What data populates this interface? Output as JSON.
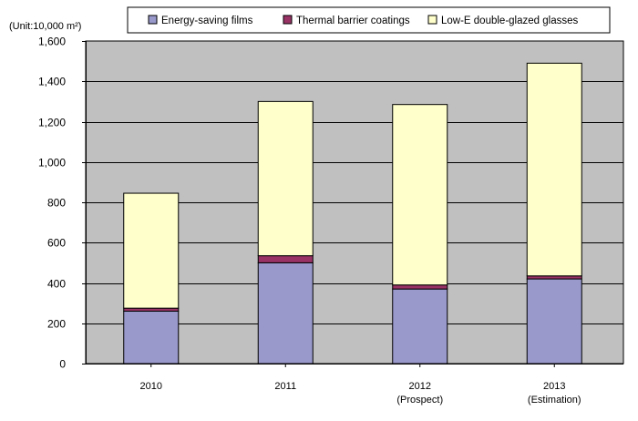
{
  "chart_data": {
    "type": "bar",
    "stacked": true,
    "unit_label": "(Unit:10,000 m²)",
    "categories": [
      "2010",
      "2011",
      "2012",
      "2013"
    ],
    "category_sublabels": [
      "",
      "",
      "(Prospect)",
      "(Estimation)"
    ],
    "series": [
      {
        "name": "Energy-saving films",
        "values": [
          260,
          500,
          370,
          420
        ],
        "color": "#9999cc"
      },
      {
        "name": "Thermal barrier coatings",
        "values": [
          15,
          35,
          20,
          15
        ],
        "color": "#993366"
      },
      {
        "name": "Low-E double-glazed glasses",
        "values": [
          570,
          765,
          895,
          1055
        ],
        "color": "#ffffcc"
      }
    ],
    "ylim": [
      0,
      1600
    ],
    "yticks": [
      0,
      200,
      400,
      600,
      800,
      1000,
      1200,
      1400,
      1600
    ],
    "ytick_labels": [
      "0",
      "200",
      "400",
      "600",
      "800",
      "1,000",
      "1,200",
      "1,400",
      "1,600"
    ],
    "grid": true,
    "plot_background": "#c0c0c0",
    "legend_position": "top"
  }
}
